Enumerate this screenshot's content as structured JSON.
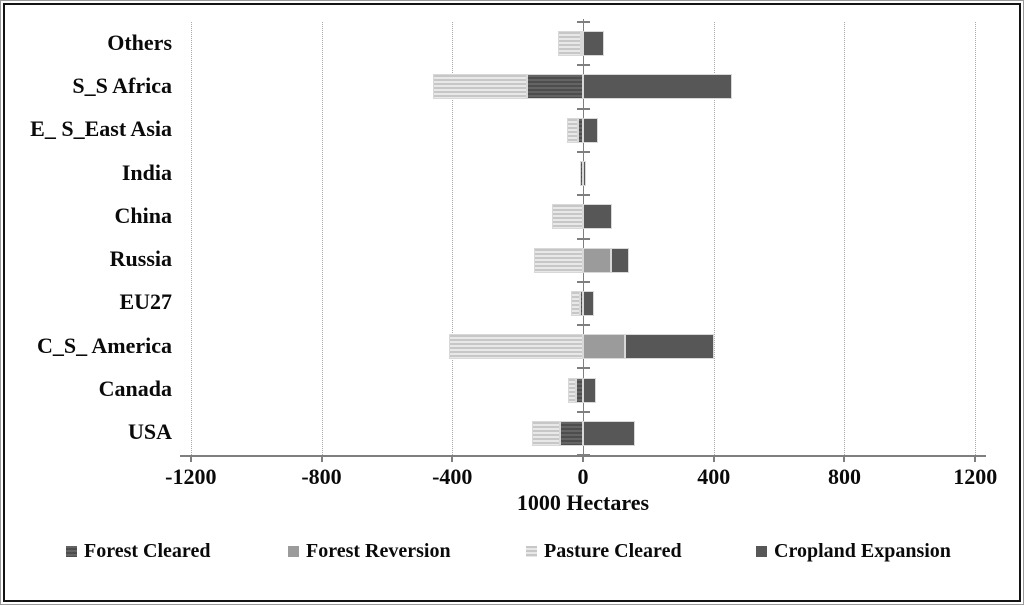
{
  "window": {
    "background": "#ffffff",
    "frame_border_color": "#141414"
  },
  "chart_data": {
    "type": "bar",
    "orientation": "horizontal",
    "stacked": true,
    "title": "",
    "xlabel": "1000 Hectares",
    "ylabel": "",
    "xlim": [
      -1233,
      1233
    ],
    "x_ticks": [
      -1200,
      -800,
      -400,
      0,
      400,
      800,
      1200
    ],
    "x_tick_labels": [
      "-1200",
      "-800",
      "-400",
      "0",
      "400",
      "800",
      "1200"
    ],
    "grid": "vertical dotted gridlines at each tick; solid vertical line at 0",
    "legend_position": "bottom",
    "axis_color": "#7f7f7f",
    "categories": [
      "Others",
      "S_S Africa",
      "E_ S_East Asia",
      "India",
      "China",
      "Russia",
      "EU27",
      "C_S_ America",
      "Canada",
      "USA"
    ],
    "series": [
      {
        "name": "Forest Cleared",
        "pattern": "horizontal-stripes",
        "fill": "#646464",
        "stripe": "#4d4d4d",
        "values": [
          -5,
          -170,
          -15,
          -10,
          0,
          0,
          -8,
          0,
          -20,
          -70
        ]
      },
      {
        "name": "Forest Reversion",
        "pattern": "solid",
        "fill": "#9b9b9b",
        "stripe": null,
        "values": [
          0,
          0,
          0,
          0,
          0,
          85,
          0,
          130,
          0,
          0
        ]
      },
      {
        "name": "Pasture Cleared",
        "pattern": "horizontal-stripes",
        "fill": "#c7c7c7",
        "stripe": "#e8e8e8",
        "values": [
          -70,
          -290,
          -35,
          0,
          -95,
          -150,
          -30,
          -410,
          -25,
          -85
        ]
      },
      {
        "name": "Cropland Expansion",
        "pattern": "solid",
        "fill": "#575757",
        "stripe": null,
        "values": [
          65,
          455,
          45,
          10,
          90,
          55,
          35,
          270,
          40,
          160
        ]
      }
    ]
  }
}
